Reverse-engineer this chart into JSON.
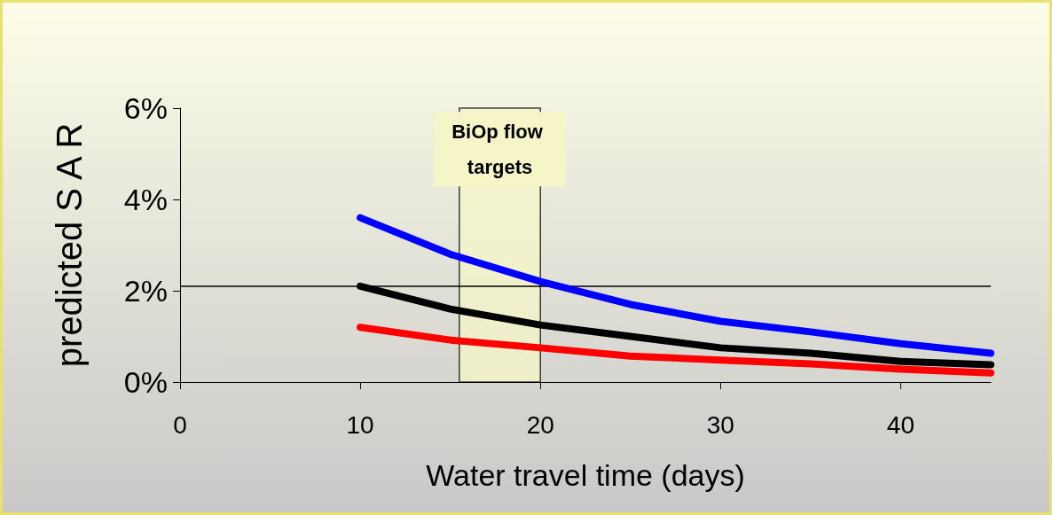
{
  "chart_data": {
    "type": "line",
    "xlabel": "Water travel time (days)",
    "ylabel": "predicted S A R",
    "xlim": [
      0,
      45
    ],
    "xticks": [
      0,
      10,
      20,
      30,
      40
    ],
    "ylim": [
      0,
      6
    ],
    "yticks": [
      {
        "value": 0,
        "label": "0%"
      },
      {
        "value": 2,
        "label": "2%"
      },
      {
        "value": 4,
        "label": "4%"
      },
      {
        "value": 6,
        "label": "6%"
      }
    ],
    "x": [
      10,
      15,
      20,
      25,
      30,
      35,
      40,
      45
    ],
    "series": [
      {
        "color": "#0000ff",
        "values": [
          3.6,
          2.8,
          2.2,
          1.7,
          1.33,
          1.1,
          0.84,
          0.63
        ]
      },
      {
        "color": "#000000",
        "values": [
          2.1,
          1.6,
          1.25,
          1.0,
          0.75,
          0.63,
          0.45,
          0.38
        ]
      },
      {
        "color": "#ff0000",
        "values": [
          1.2,
          0.92,
          0.75,
          0.57,
          0.48,
          0.4,
          0.28,
          0.2
        ]
      }
    ],
    "ref_lines": [
      {
        "axis": "y",
        "value": 2.1,
        "color": "#000000"
      }
    ],
    "bands": [
      {
        "axis": "x",
        "from": 15.5,
        "to": 20,
        "label": "BiOp flow targets",
        "color": "#f5f5c8"
      }
    ],
    "line_style": "solid",
    "grid": false
  }
}
